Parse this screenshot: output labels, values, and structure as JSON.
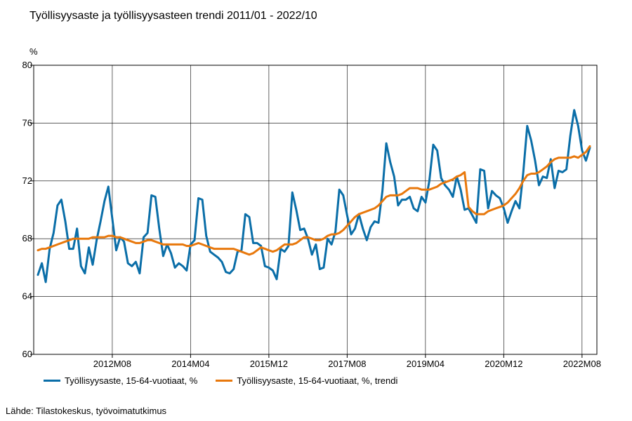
{
  "chart_data": {
    "type": "line",
    "title": "Työllisyysaste ja työllisyysasteen trendi 2011/01 - 2022/10",
    "ylabel": "%",
    "ylim": [
      60,
      80
    ],
    "yticks": [
      60,
      64,
      68,
      72,
      76,
      80
    ],
    "xrange": [
      "2011M01",
      "2022M10"
    ],
    "xticks": [
      "2012M08",
      "2014M04",
      "2015M12",
      "2017M08",
      "2019M04",
      "2020M12",
      "2022M08"
    ],
    "grid": true,
    "legend_position": "bottom",
    "series": [
      {
        "name": "Työllisyysaste, 15-64-vuotiaat, %",
        "color": "#0a6ea8",
        "values": [
          65.5,
          66.3,
          65.0,
          67.3,
          68.4,
          70.3,
          70.7,
          69.2,
          67.3,
          67.3,
          68.7,
          66.1,
          65.6,
          67.4,
          66.2,
          67.9,
          69.2,
          70.6,
          71.6,
          69.4,
          67.2,
          68.1,
          67.8,
          66.3,
          66.1,
          66.4,
          65.6,
          68.1,
          68.4,
          71.0,
          70.9,
          68.7,
          66.8,
          67.6,
          67.0,
          66.0,
          66.3,
          66.1,
          65.8,
          67.6,
          67.9,
          70.8,
          70.7,
          68.2,
          67.1,
          66.9,
          66.7,
          66.4,
          65.7,
          65.6,
          65.9,
          67.1,
          67.2,
          69.7,
          69.5,
          67.7,
          67.7,
          67.5,
          66.1,
          66.0,
          65.8,
          65.2,
          67.3,
          67.1,
          67.5,
          71.2,
          70.0,
          68.6,
          68.7,
          68.0,
          66.9,
          67.6,
          65.9,
          66.0,
          68.0,
          67.6,
          68.5,
          71.4,
          71.0,
          69.6,
          68.3,
          68.7,
          69.7,
          68.7,
          67.9,
          68.8,
          69.2,
          69.1,
          71.3,
          74.6,
          73.3,
          72.3,
          70.3,
          70.7,
          70.7,
          70.9,
          70.1,
          69.9,
          70.9,
          70.5,
          72.0,
          74.5,
          74.1,
          72.2,
          71.7,
          71.4,
          70.9,
          72.3,
          71.4,
          70.0,
          70.1,
          69.6,
          69.1,
          72.8,
          72.7,
          70.1,
          71.3,
          71.0,
          70.8,
          70.1,
          69.1,
          69.9,
          70.6,
          70.1,
          72.6,
          75.8,
          74.8,
          73.4,
          71.7,
          72.3,
          72.2,
          73.5,
          71.5,
          72.7,
          72.6,
          72.8,
          75.1,
          76.9,
          75.8,
          74.1,
          73.4,
          74.3
        ]
      },
      {
        "name": "Työllisyysaste, 15-64-vuotiaat, %, trendi",
        "color": "#e8780c",
        "values": [
          67.2,
          67.3,
          67.3,
          67.4,
          67.5,
          67.6,
          67.7,
          67.8,
          67.9,
          68.0,
          68.0,
          68.0,
          68.0,
          68.0,
          68.1,
          68.1,
          68.1,
          68.1,
          68.2,
          68.2,
          68.1,
          68.1,
          68.0,
          67.9,
          67.8,
          67.7,
          67.7,
          67.8,
          67.9,
          67.9,
          67.8,
          67.7,
          67.6,
          67.6,
          67.6,
          67.6,
          67.6,
          67.6,
          67.5,
          67.5,
          67.6,
          67.7,
          67.6,
          67.5,
          67.4,
          67.3,
          67.3,
          67.3,
          67.3,
          67.3,
          67.3,
          67.2,
          67.1,
          67.0,
          66.9,
          67.0,
          67.2,
          67.4,
          67.3,
          67.2,
          67.1,
          67.2,
          67.4,
          67.6,
          67.6,
          67.6,
          67.7,
          67.9,
          68.1,
          68.1,
          68.0,
          67.9,
          67.9,
          68.0,
          68.2,
          68.3,
          68.3,
          68.4,
          68.6,
          68.9,
          69.2,
          69.5,
          69.7,
          69.8,
          69.9,
          70.0,
          70.1,
          70.3,
          70.6,
          70.9,
          71.0,
          71.0,
          71.0,
          71.1,
          71.3,
          71.5,
          71.5,
          71.5,
          71.4,
          71.4,
          71.4,
          71.5,
          71.6,
          71.8,
          71.9,
          72.0,
          72.1,
          72.3,
          72.4,
          72.6,
          70.2,
          69.9,
          69.7,
          69.7,
          69.7,
          69.9,
          70.0,
          70.1,
          70.2,
          70.3,
          70.5,
          70.8,
          71.1,
          71.5,
          72.0,
          72.4,
          72.5,
          72.5,
          72.6,
          72.8,
          73.0,
          73.3,
          73.5,
          73.6,
          73.6,
          73.6,
          73.6,
          73.7,
          73.6,
          73.8,
          74.0,
          74.4
        ]
      }
    ],
    "unit": "%",
    "source": "Lähde: Tilastokeskus, työvoimatutkimus"
  }
}
